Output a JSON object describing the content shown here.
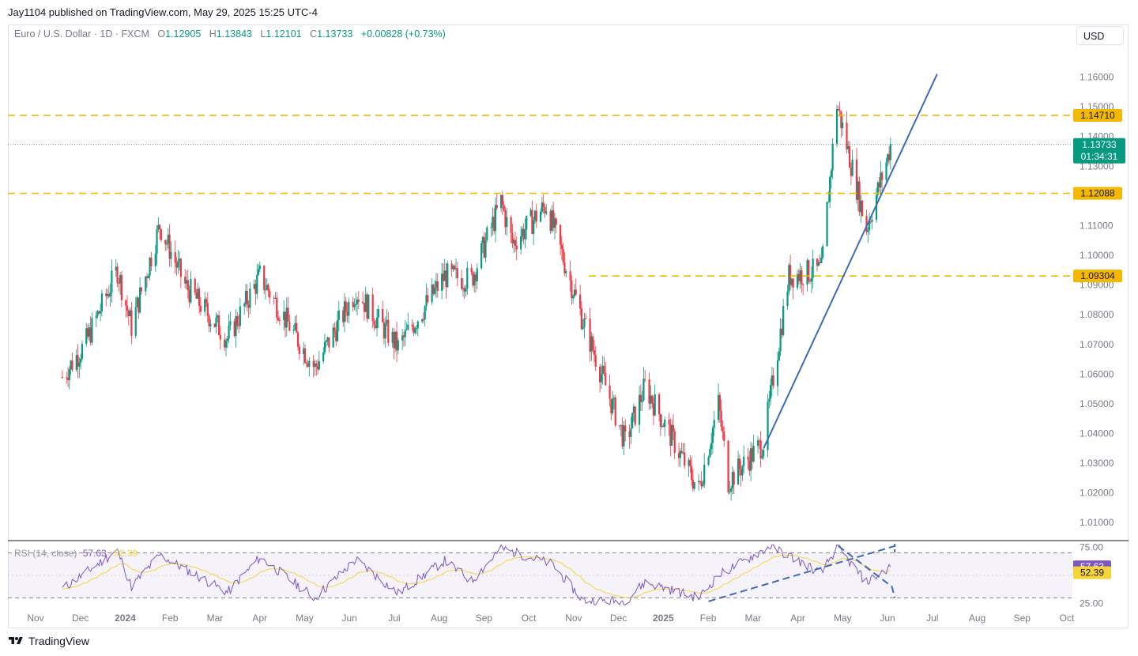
{
  "header": {
    "published_line": "Jay1104 published on TradingView.com, May 29, 2025 15:25 UTC-4"
  },
  "legend": {
    "symbol": "Euro / U.S. Dollar · 1D · FXCM",
    "o_label": "O",
    "o": "1.12905",
    "h_label": "H",
    "h": "1.13843",
    "l_label": "L",
    "l": "1.12101",
    "c_label": "C",
    "c": "1.13733",
    "change": "+0.00828 (+0.73%)"
  },
  "currency_button": "USD",
  "rsi_legend": {
    "label": "RSI (14, close)",
    "rsi": "57.63",
    "ma": "52.39"
  },
  "footer": {
    "brand": "TradingView"
  },
  "colors": {
    "up": "#089981",
    "down": "#f23645",
    "level": "#f5b800",
    "trend": "#3d6bb5",
    "rsi": "#7e57c2",
    "rsi_ma": "#f5d43a",
    "price_tag": "#089981"
  },
  "chart_data": [
    {
      "type": "candlestick",
      "symbol": "EURUSD",
      "interval": "1D",
      "y_ticks": [
        "1.16000",
        "1.15000",
        "1.14000",
        "1.13000",
        "1.12000",
        "1.11000",
        "1.10000",
        "1.09000",
        "1.08000",
        "1.07000",
        "1.06000",
        "1.05000",
        "1.04000",
        "1.03000",
        "1.02000",
        "1.01000"
      ],
      "ylim": [
        1.005,
        1.17
      ],
      "x_ticks": [
        {
          "label": "Nov",
          "bold": false
        },
        {
          "label": "Dec",
          "bold": false
        },
        {
          "label": "2024",
          "bold": true
        },
        {
          "label": "Feb",
          "bold": false
        },
        {
          "label": "Mar",
          "bold": false
        },
        {
          "label": "Apr",
          "bold": false
        },
        {
          "label": "May",
          "bold": false
        },
        {
          "label": "Jun",
          "bold": false
        },
        {
          "label": "Jul",
          "bold": false
        },
        {
          "label": "Aug",
          "bold": false
        },
        {
          "label": "Sep",
          "bold": false
        },
        {
          "label": "Oct",
          "bold": false
        },
        {
          "label": "Nov",
          "bold": false
        },
        {
          "label": "Dec",
          "bold": false
        },
        {
          "label": "2025",
          "bold": true
        },
        {
          "label": "Feb",
          "bold": false
        },
        {
          "label": "Mar",
          "bold": false
        },
        {
          "label": "Apr",
          "bold": false
        },
        {
          "label": "May",
          "bold": false
        },
        {
          "label": "Jun",
          "bold": false
        },
        {
          "label": "Jul",
          "bold": false
        },
        {
          "label": "Aug",
          "bold": false
        },
        {
          "label": "Sep",
          "bold": false
        },
        {
          "label": "Oct",
          "bold": false
        }
      ],
      "approx_closes": [
        {
          "date": "2023-10-20",
          "close": 1.059
        },
        {
          "date": "2023-11-05",
          "close": 1.07
        },
        {
          "date": "2023-11-28",
          "close": 1.095
        },
        {
          "date": "2023-12-08",
          "close": 1.076
        },
        {
          "date": "2023-12-28",
          "close": 1.11
        },
        {
          "date": "2024-01-15",
          "close": 1.09
        },
        {
          "date": "2024-02-14",
          "close": 1.072
        },
        {
          "date": "2024-03-08",
          "close": 1.093
        },
        {
          "date": "2024-04-16",
          "close": 1.062
        },
        {
          "date": "2024-05-15",
          "close": 1.088
        },
        {
          "date": "2024-06-14",
          "close": 1.069
        },
        {
          "date": "2024-07-17",
          "close": 1.093
        },
        {
          "date": "2024-08-05",
          "close": 1.092
        },
        {
          "date": "2024-08-26",
          "close": 1.118
        },
        {
          "date": "2024-09-03",
          "close": 1.104
        },
        {
          "date": "2024-09-27",
          "close": 1.117
        },
        {
          "date": "2024-10-23",
          "close": 1.078
        },
        {
          "date": "2024-11-22",
          "close": 1.037
        },
        {
          "date": "2024-12-06",
          "close": 1.056
        },
        {
          "date": "2025-01-13",
          "close": 1.021
        },
        {
          "date": "2025-01-27",
          "close": 1.05
        },
        {
          "date": "2025-02-03",
          "close": 1.024
        },
        {
          "date": "2025-02-28",
          "close": 1.037
        },
        {
          "date": "2025-03-18",
          "close": 1.093
        },
        {
          "date": "2025-04-10",
          "close": 1.095
        },
        {
          "date": "2025-04-21",
          "close": 1.151
        },
        {
          "date": "2025-05-12",
          "close": 1.109
        },
        {
          "date": "2025-05-27",
          "close": 1.133
        },
        {
          "date": "2025-05-29",
          "close": 1.13733
        }
      ],
      "horizontal_levels": [
        "1.14710",
        "1.12088",
        "1.09304"
      ],
      "last_price": {
        "price": "1.13733",
        "countdown": "01:34:31"
      },
      "trendline": {
        "from": {
          "date": "2025-02-28",
          "price": 1.035
        },
        "to": {
          "date": "2025-07-01",
          "price": 1.161
        }
      }
    },
    {
      "type": "line",
      "name": "RSI (14, close)",
      "y_ticks": [
        "75.00",
        "25.00"
      ],
      "ylim": [
        22,
        78
      ],
      "bands": [
        70,
        50,
        30
      ],
      "current": {
        "rsi": "57.63",
        "ma": "52.39"
      },
      "approx_values": [
        {
          "date": "2023-10-20",
          "rsi": 38
        },
        {
          "date": "2023-11-28",
          "rsi": 72
        },
        {
          "date": "2023-12-08",
          "rsi": 40
        },
        {
          "date": "2023-12-28",
          "rsi": 68
        },
        {
          "date": "2024-02-14",
          "rsi": 35
        },
        {
          "date": "2024-03-08",
          "rsi": 66
        },
        {
          "date": "2024-04-16",
          "rsi": 30
        },
        {
          "date": "2024-05-15",
          "rsi": 64
        },
        {
          "date": "2024-06-14",
          "rsi": 34
        },
        {
          "date": "2024-07-17",
          "rsi": 63
        },
        {
          "date": "2024-08-05",
          "rsi": 45
        },
        {
          "date": "2024-08-26",
          "rsi": 74
        },
        {
          "date": "2024-10-01",
          "rsi": 60
        },
        {
          "date": "2024-10-23",
          "rsi": 28
        },
        {
          "date": "2024-11-22",
          "rsi": 27
        },
        {
          "date": "2024-12-06",
          "rsi": 44
        },
        {
          "date": "2025-01-13",
          "rsi": 30
        },
        {
          "date": "2025-01-27",
          "rsi": 50
        },
        {
          "date": "2025-03-05",
          "rsi": 76
        },
        {
          "date": "2025-04-10",
          "rsi": 52
        },
        {
          "date": "2025-04-21",
          "rsi": 75
        },
        {
          "date": "2025-05-12",
          "rsi": 44
        },
        {
          "date": "2025-05-29",
          "rsi": 57.63
        }
      ]
    }
  ]
}
